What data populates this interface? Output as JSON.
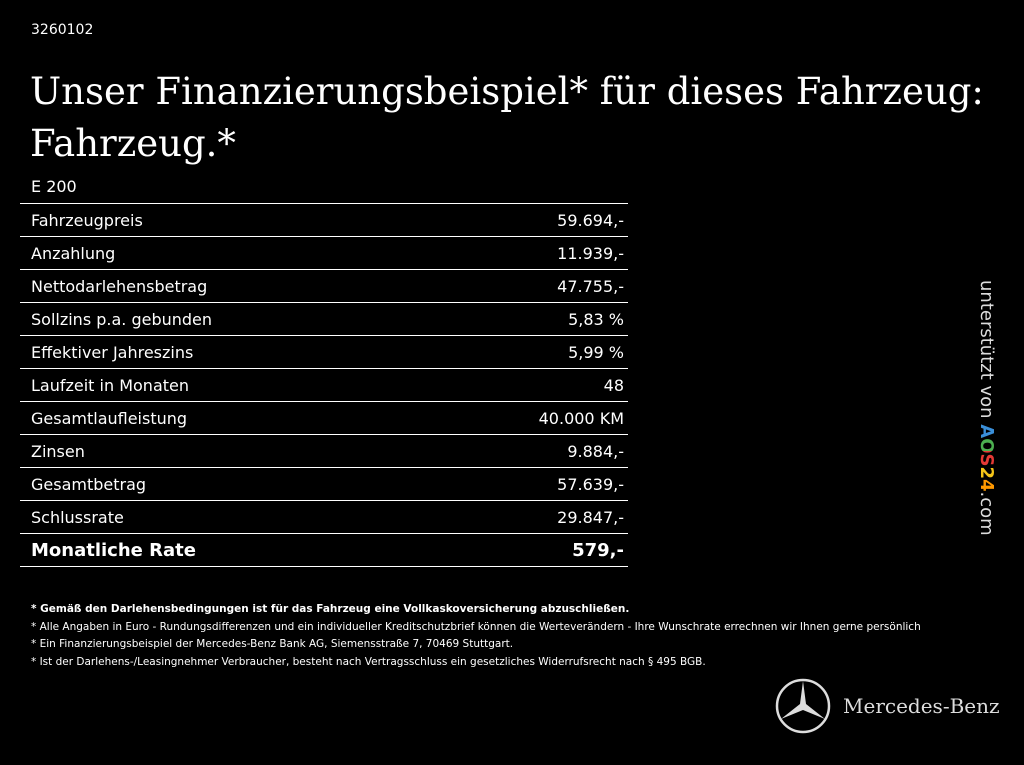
{
  "header": {
    "id": "3260102",
    "title_line1": "Unser Finanzierungsbeispiel* für dieses Fahrzeug:",
    "title_line2": "Fahrzeug.*"
  },
  "model": "E 200",
  "table": {
    "rows": [
      [
        "Fahrzeugpreis",
        "59.694,-"
      ],
      [
        "Anzahlung",
        "11.939,-"
      ],
      [
        "Nettodarlehensbetrag",
        "47.755,-"
      ],
      [
        "Sollzins p.a. gebunden",
        "5,83 %"
      ],
      [
        "Effektiver Jahreszins",
        "5,99 %"
      ],
      [
        "Laufzeit in Monaten",
        "48"
      ],
      [
        "Gesamtlaufleistung",
        "40.000 KM"
      ],
      [
        "Zinsen",
        "9.884,-"
      ],
      [
        "Gesamtbetrag",
        "57.639,-"
      ],
      [
        "Schlussrate",
        "29.847,-"
      ]
    ],
    "total": [
      "Monatliche Rate",
      "579,-"
    ]
  },
  "footnotes": [
    "* Gemäß den Darlehensbedingungen ist für das Fahrzeug eine Vollkaskoversicherung abzuschließen.",
    "* Alle Angaben in Euro - Rundungsdifferenzen und ein individueller Kreditschutzbrief können die Werteverändern - Ihre Wunschrate errechnen wir Ihnen gerne persönlich",
    "* Ein Finanzierungsbeispiel der Mercedes-Benz Bank AG, Siemensstraße 7, 70469 Stuttgart.",
    "* Ist der Darlehens-/Leasingnehmer Verbraucher, besteht nach Vertragsschluss ein gesetzliches Widerrufsrecht nach § 495 BGB."
  ],
  "side": {
    "prefix": "unterstützt von",
    "brand": "AOS24",
    "suffix": ".com"
  },
  "logo": "Mercedes-Benz"
}
